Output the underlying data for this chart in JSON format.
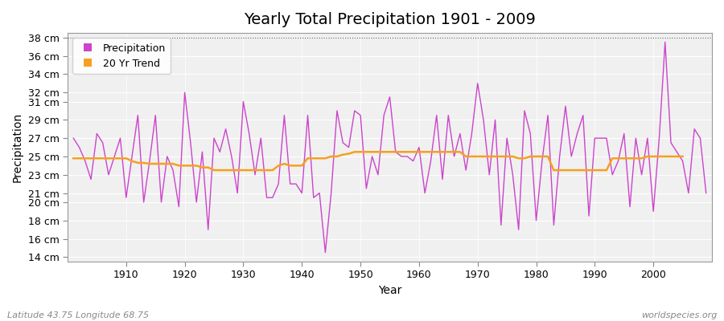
{
  "title": "Yearly Total Precipitation 1901 - 2009",
  "xlabel": "Year",
  "ylabel": "Precipitation",
  "fig_bg_color": "#ffffff",
  "plot_bg_color": "#f0f0f0",
  "precip_color": "#cc44cc",
  "trend_color": "#f5a020",
  "dotted_line_y": 38,
  "years": [
    1901,
    1902,
    1903,
    1904,
    1905,
    1906,
    1907,
    1908,
    1909,
    1910,
    1911,
    1912,
    1913,
    1914,
    1915,
    1916,
    1917,
    1918,
    1919,
    1920,
    1921,
    1922,
    1923,
    1924,
    1925,
    1926,
    1927,
    1928,
    1929,
    1930,
    1931,
    1932,
    1933,
    1934,
    1935,
    1936,
    1937,
    1938,
    1939,
    1940,
    1941,
    1942,
    1943,
    1944,
    1945,
    1946,
    1947,
    1948,
    1949,
    1950,
    1951,
    1952,
    1953,
    1954,
    1955,
    1956,
    1957,
    1958,
    1959,
    1960,
    1961,
    1962,
    1963,
    1964,
    1965,
    1966,
    1967,
    1968,
    1969,
    1970,
    1971,
    1972,
    1973,
    1974,
    1975,
    1976,
    1977,
    1978,
    1979,
    1980,
    1981,
    1982,
    1983,
    1984,
    1985,
    1986,
    1987,
    1988,
    1989,
    1990,
    1991,
    1992,
    1993,
    1994,
    1995,
    1996,
    1997,
    1998,
    1999,
    2000,
    2001,
    2002,
    2003,
    2004,
    2005,
    2006,
    2007,
    2008,
    2009
  ],
  "precip": [
    27.0,
    26.0,
    24.5,
    22.5,
    27.5,
    26.5,
    23.0,
    25.0,
    27.0,
    20.5,
    25.0,
    29.5,
    20.0,
    24.5,
    29.5,
    20.0,
    25.0,
    23.5,
    19.5,
    32.0,
    26.5,
    20.0,
    25.5,
    17.0,
    27.0,
    25.5,
    28.0,
    25.0,
    21.0,
    31.0,
    27.5,
    23.0,
    27.0,
    20.5,
    20.5,
    22.0,
    29.5,
    22.0,
    22.0,
    21.0,
    29.5,
    20.5,
    21.0,
    14.5,
    21.0,
    30.0,
    26.5,
    26.0,
    30.0,
    29.5,
    21.5,
    25.0,
    23.0,
    29.5,
    31.5,
    25.5,
    25.0,
    25.0,
    24.5,
    26.0,
    21.0,
    24.5,
    29.5,
    22.5,
    29.5,
    25.0,
    27.5,
    23.5,
    27.5,
    33.0,
    29.0,
    23.0,
    29.0,
    17.5,
    27.0,
    23.0,
    17.0,
    30.0,
    27.5,
    18.0,
    24.5,
    29.5,
    17.5,
    25.0,
    30.5,
    25.0,
    27.5,
    29.5,
    18.5,
    27.0,
    27.0,
    27.0,
    23.0,
    24.5,
    27.5,
    19.5,
    27.0,
    23.0,
    27.0,
    19.0,
    27.0,
    37.5,
    26.5,
    25.5,
    24.5,
    21.0,
    28.0,
    27.0,
    21.0
  ],
  "trend": [
    24.8,
    24.8,
    24.8,
    24.8,
    24.8,
    24.8,
    24.8,
    24.8,
    24.8,
    24.8,
    24.5,
    24.3,
    24.3,
    24.2,
    24.2,
    24.2,
    24.2,
    24.2,
    24.0,
    24.0,
    24.0,
    24.0,
    23.8,
    23.8,
    23.5,
    23.5,
    23.5,
    23.5,
    23.5,
    23.5,
    23.5,
    23.5,
    23.5,
    23.5,
    23.5,
    24.0,
    24.2,
    24.0,
    24.0,
    24.0,
    24.8,
    24.8,
    24.8,
    24.8,
    25.0,
    25.0,
    25.2,
    25.3,
    25.5,
    25.5,
    25.5,
    25.5,
    25.5,
    25.5,
    25.5,
    25.5,
    25.5,
    25.5,
    25.5,
    25.5,
    25.5,
    25.5,
    25.5,
    25.5,
    25.5,
    25.5,
    25.5,
    25.0,
    25.0,
    25.0,
    25.0,
    25.0,
    25.0,
    25.0,
    25.0,
    25.0,
    24.8,
    24.8,
    25.0,
    25.0,
    25.0,
    25.0,
    23.5,
    23.5,
    23.5,
    23.5,
    23.5,
    23.5,
    23.5,
    23.5,
    23.5,
    23.5,
    24.8,
    24.8,
    24.8,
    24.8,
    24.8,
    24.8,
    25.0,
    25.0,
    25.0,
    25.0,
    25.0,
    25.0,
    25.0
  ],
  "ytick_labels": [
    "14 cm",
    "16 cm",
    "18 cm",
    "20 cm",
    "21 cm",
    "23 cm",
    "25 cm",
    "27 cm",
    "29 cm",
    "31 cm",
    "32 cm",
    "34 cm",
    "36 cm",
    "38 cm"
  ],
  "ytick_values": [
    14,
    16,
    18,
    20,
    21,
    23,
    25,
    27,
    29,
    31,
    32,
    34,
    36,
    38
  ],
  "ylim": [
    13.5,
    38.5
  ],
  "xlim": [
    1900,
    2010
  ],
  "xticks": [
    1910,
    1920,
    1930,
    1940,
    1950,
    1960,
    1970,
    1980,
    1990,
    2000
  ],
  "footer_left": "Latitude 43.75 Longitude 68.75",
  "footer_right": "worldspecies.org",
  "title_fontsize": 14,
  "axis_fontsize": 10,
  "tick_fontsize": 9,
  "footer_fontsize": 8
}
